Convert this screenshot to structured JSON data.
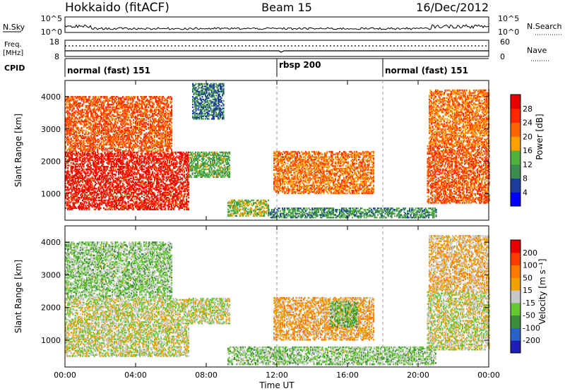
{
  "header": {
    "station": "Hokkaido (fitACF)",
    "beam": "Beam 15",
    "date": "16/Dec/2012"
  },
  "noise_panel": {
    "left_label": "N.Sky",
    "right_label": "N.Search",
    "left_ticks": [
      "10^5",
      "10^0"
    ],
    "right_ticks": [
      "10^5",
      "10^0"
    ]
  },
  "freq_panel": {
    "left_label_line1": "Freq.",
    "left_label_line2": "[MHz]",
    "right_label": "Nave",
    "left_ticks": [
      "18",
      "8"
    ],
    "right_ticks": [
      "60",
      "0"
    ]
  },
  "cpid": {
    "label": "CPID",
    "modes": [
      {
        "name": "normal (fast) 151",
        "start_hour": 0
      },
      {
        "name": "rbsp 200",
        "start_hour": 12
      },
      {
        "name": "normal (fast) 151",
        "start_hour": 18
      }
    ]
  },
  "x_axis": {
    "title": "Time UT",
    "tick_labels": [
      "00:00",
      "04:00",
      "08:00",
      "12:00",
      "16:00",
      "20:00",
      "00:00"
    ],
    "range_hours": [
      0,
      24
    ]
  },
  "colors": {
    "power_scale": [
      "#0000ff",
      "#1e3c9b",
      "#3c8c50",
      "#50b43c",
      "#ffa000",
      "#ff6400",
      "#ff2800",
      "#e60000"
    ],
    "velocity_scale": [
      "#1e1eb4",
      "#2864c8",
      "#3c8c3c",
      "#64c832",
      "#c8c8c8",
      "#f0a000",
      "#ff7800",
      "#ff3c00",
      "#e60000"
    ]
  },
  "chart_data": [
    {
      "type": "heatmap",
      "panel": "power",
      "ylabel": "Slant Range [km]",
      "ylim": [
        180,
        4500
      ],
      "y_ticks": [
        1000,
        2000,
        3000,
        4000
      ],
      "xlim": [
        0,
        24
      ],
      "colorbar": {
        "title": "Power [dB]",
        "ticks": [
          "28",
          "24",
          "20",
          "16",
          "12",
          "8",
          "4"
        ],
        "range": [
          0,
          30
        ]
      },
      "regions": [
        {
          "t0": 0.0,
          "t1": 7.0,
          "r0": 500,
          "r1": 2300,
          "value": 26
        },
        {
          "t0": 0.0,
          "t1": 6.0,
          "r0": 2300,
          "r1": 4000,
          "value": 22
        },
        {
          "t0": 7.0,
          "t1": 9.3,
          "r0": 1500,
          "r1": 2300,
          "value": 12
        },
        {
          "t0": 7.2,
          "t1": 9.0,
          "r0": 3300,
          "r1": 4400,
          "value": 8
        },
        {
          "t0": 9.2,
          "t1": 11.5,
          "r0": 300,
          "r1": 800,
          "value": 14
        },
        {
          "t0": 11.5,
          "t1": 21.0,
          "r0": 250,
          "r1": 550,
          "value": 10
        },
        {
          "t0": 11.8,
          "t1": 17.5,
          "r0": 1000,
          "r1": 2300,
          "value": 20
        },
        {
          "t0": 20.5,
          "t1": 24.0,
          "r0": 700,
          "r1": 2500,
          "value": 22
        },
        {
          "t0": 20.6,
          "t1": 24.0,
          "r0": 2500,
          "r1": 4200,
          "value": 20
        }
      ]
    },
    {
      "type": "heatmap",
      "panel": "velocity",
      "ylabel": "Slant Range [km]",
      "ylim": [
        180,
        4500
      ],
      "y_ticks": [
        1000,
        2000,
        3000,
        4000
      ],
      "xlim": [
        0,
        24
      ],
      "colorbar": {
        "title": "Velocity [m s⁻¹]",
        "ticks": [
          "200",
          "100",
          "50",
          "15",
          "-15",
          "-50",
          "-100",
          "-200"
        ],
        "range": [
          -250,
          250
        ]
      },
      "regions": [
        {
          "t0": 0.0,
          "t1": 7.0,
          "r0": 500,
          "r1": 2300,
          "value": 0
        },
        {
          "t0": 0.0,
          "t1": 6.0,
          "r0": 2300,
          "r1": 4000,
          "value": -40
        },
        {
          "t0": 7.0,
          "t1": 9.3,
          "r0": 1500,
          "r1": 2300,
          "value": 0
        },
        {
          "t0": 9.2,
          "t1": 21.0,
          "r0": 250,
          "r1": 800,
          "value": -40
        },
        {
          "t0": 11.8,
          "t1": 17.5,
          "r0": 1000,
          "r1": 2300,
          "value": 60
        },
        {
          "t0": 15.0,
          "t1": 16.5,
          "r0": 1400,
          "r1": 2200,
          "value": -60
        },
        {
          "t0": 20.5,
          "t1": 24.0,
          "r0": 700,
          "r1": 2500,
          "value": 0
        },
        {
          "t0": 20.6,
          "t1": 24.0,
          "r0": 2500,
          "r1": 4200,
          "value": 40
        }
      ]
    }
  ]
}
